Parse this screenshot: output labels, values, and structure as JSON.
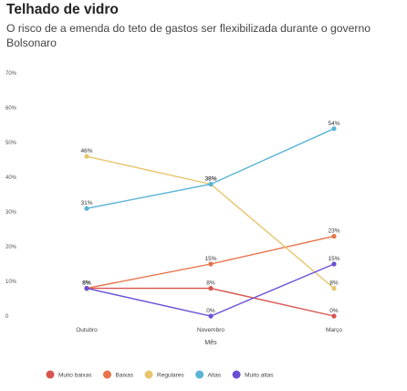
{
  "header": {
    "title": "Telhado de vidro",
    "subtitle": "O risco de a emenda do teto de gastos ser flexibilizada durante o governo Bolsonaro"
  },
  "chart_data": {
    "type": "line",
    "categories": [
      "Outubro",
      "Novembro",
      "Março"
    ],
    "xlabel": "Mês",
    "ylabel": "",
    "ylim": [
      0,
      70
    ],
    "yticks": [
      0,
      10,
      20,
      30,
      40,
      50,
      60,
      70
    ],
    "ytick_labels": [
      "0",
      "10%",
      "20%",
      "30%",
      "40%",
      "50%",
      "60%",
      "70%"
    ],
    "grid": false,
    "legend_position": "bottom",
    "series": [
      {
        "name": "Muito baixas",
        "color": "#d9534f",
        "values": [
          8,
          8,
          0
        ],
        "labels": [
          "8%",
          "8%",
          "0%"
        ]
      },
      {
        "name": "Baixas",
        "color": "#e8734a",
        "values": [
          8,
          15,
          23
        ],
        "labels": [
          "8%",
          "15%",
          "23%"
        ]
      },
      {
        "name": "Regulares",
        "color": "#e8c56a",
        "values": [
          46,
          38,
          8
        ],
        "labels": [
          "46%",
          "38%",
          "8%"
        ]
      },
      {
        "name": "Altas",
        "color": "#5ab4d6",
        "values": [
          31,
          38,
          54
        ],
        "labels": [
          "31%",
          "38%",
          "54%"
        ]
      },
      {
        "name": "Muito altas",
        "color": "#6a4fd6",
        "values": [
          8,
          0,
          15
        ],
        "labels": [
          "8%",
          "0%",
          "15%"
        ]
      }
    ]
  }
}
